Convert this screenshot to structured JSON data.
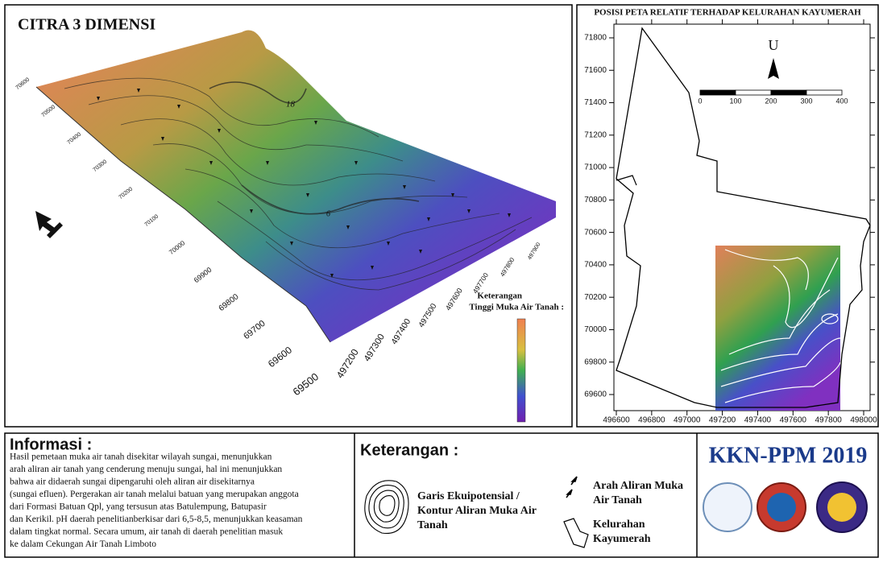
{
  "left_panel": {
    "title": "CITRA 3 DIMENSI",
    "y_axis_labels": [
      "69500",
      "69600",
      "69700",
      "69800",
      "69900",
      "70000",
      "70100",
      "70200",
      "70300",
      "70400",
      "70500",
      "70600"
    ],
    "x_axis_labels": [
      "497200",
      "497300",
      "497400",
      "497500",
      "497600",
      "497700",
      "497800",
      "497900"
    ],
    "contour_labels": [
      "18",
      "6"
    ],
    "legend": {
      "title": "Keterangan",
      "subtitle": "Tinggi Muka Air Tanah :"
    }
  },
  "right_panel": {
    "title": "POSISI PETA RELATIF TERHADAP KELURAHAN KAYUMERAH",
    "yticks": [
      71800,
      71600,
      71400,
      71200,
      71000,
      70800,
      70600,
      70400,
      70200,
      70000,
      69800,
      69600
    ],
    "xticks": [
      496600,
      496800,
      497000,
      497200,
      497400,
      497600,
      497800,
      498000
    ],
    "north": "U",
    "scale": [
      0,
      100,
      200,
      300,
      400
    ]
  },
  "info": {
    "heading": "Informasi :",
    "lines": [
      "Hasil pemetaan muka air tanah disekitar wilayah sungai, menunjukkan",
      "arah aliran air tanah yang cenderung menuju sungai, hal ini menunjukkan",
      "bahwa air didaerah sungai dipengaruhi oleh aliran air disekitarnya",
      "(sungai efluen). Pergerakan air tanah melalui batuan yang merupakan anggota",
      "dari Formasi Batuan Qpl, yang tersusun atas Batulempung, Batupasir",
      "dan Kerikil. pH daerah penelitianberkisar dari 6,5-8,5, menunjukkan keasaman",
      "dalam tingkat normal. Secara umum, air tanah di daerah penelitian masuk",
      "ke dalam Cekungan Air Tanah Limboto"
    ]
  },
  "keterangan": {
    "heading": "Keterangan :",
    "contour": [
      "Garis Ekuipotensial /",
      "Kontur Aliran Muka Air",
      "Tanah"
    ],
    "flow": [
      "Arah Aliran Muka",
      "Air Tanah"
    ],
    "boundary": [
      "Kelurahan",
      "Kayumerah"
    ]
  },
  "brand": {
    "title": "KKN-PPM 2019"
  }
}
